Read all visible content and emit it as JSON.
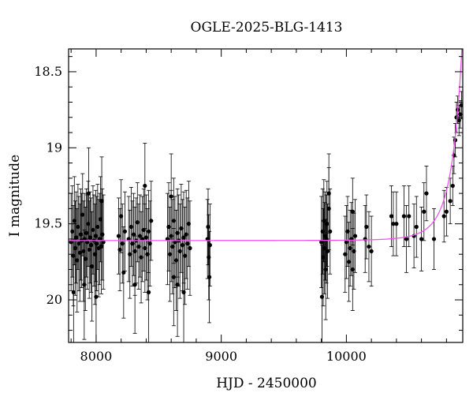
{
  "chart_data": {
    "type": "scatter",
    "title": "OGLE-2025-BLG-1413",
    "xlabel": "HJD - 2450000",
    "ylabel": "I magnitude",
    "xlim": [
      7780,
      10930
    ],
    "ylim": [
      20.28,
      18.35
    ],
    "y_inverted": true,
    "x_ticks": [
      8000,
      9000,
      10000
    ],
    "x_tick_labels": [
      "8000",
      "9000",
      "10000"
    ],
    "y_ticks": [
      18.5,
      19,
      19.5,
      20
    ],
    "y_tick_labels": [
      "18.5",
      "19",
      "19.5",
      "20"
    ],
    "grid": false,
    "legend": "none",
    "colors": {
      "points": "#000000",
      "model": "#ee55ee",
      "axes": "#000000"
    },
    "series": [
      {
        "kind": "points_with_errorbars",
        "points": [
          [
            7800,
            19.62,
            0.32
          ],
          [
            7810,
            19.55,
            0.3
          ],
          [
            7818,
            19.71,
            0.33
          ],
          [
            7826,
            19.48,
            0.29
          ],
          [
            7833,
            19.66,
            0.31
          ],
          [
            7840,
            19.59,
            0.3
          ],
          [
            7848,
            19.74,
            0.34
          ],
          [
            7855,
            19.52,
            0.28
          ],
          [
            7862,
            19.63,
            0.31
          ],
          [
            7870,
            19.69,
            0.32
          ],
          [
            7877,
            19.57,
            0.3
          ],
          [
            7884,
            19.61,
            0.31
          ],
          [
            7892,
            19.44,
            0.27
          ],
          [
            7900,
            19.68,
            0.33
          ],
          [
            7907,
            19.6,
            0.3
          ],
          [
            7914,
            19.73,
            0.34
          ],
          [
            7922,
            19.56,
            0.29
          ],
          [
            7930,
            19.62,
            0.31
          ],
          [
            7937,
            19.5,
            0.28
          ],
          [
            7945,
            19.67,
            0.32
          ],
          [
            7952,
            19.59,
            0.3
          ],
          [
            7960,
            19.64,
            0.31
          ],
          [
            7967,
            19.78,
            0.36
          ],
          [
            7975,
            19.54,
            0.29
          ],
          [
            7982,
            19.61,
            0.3
          ],
          [
            7990,
            19.7,
            0.33
          ],
          [
            7997,
            19.58,
            0.3
          ],
          [
            8005,
            19.63,
            0.31
          ],
          [
            8012,
            19.52,
            0.28
          ],
          [
            8020,
            19.66,
            0.32
          ],
          [
            8027,
            19.6,
            0.3
          ],
          [
            8035,
            19.47,
            0.28
          ],
          [
            8042,
            19.65,
            0.31
          ],
          [
            8050,
            19.57,
            0.3
          ],
          [
            8058,
            19.62,
            0.31
          ],
          [
            7820,
            19.95,
            0.35
          ],
          [
            7905,
            19.9,
            0.36
          ],
          [
            7940,
            19.3,
            0.3
          ],
          [
            8000,
            19.98,
            0.35
          ],
          [
            8045,
            19.35,
            0.29
          ],
          [
            8180,
            19.58,
            0.25
          ],
          [
            8190,
            19.67,
            0.27
          ],
          [
            8200,
            19.45,
            0.24
          ],
          [
            8210,
            19.63,
            0.26
          ],
          [
            8220,
            19.82,
            0.3
          ],
          [
            8230,
            19.55,
            0.26
          ],
          [
            8260,
            19.6,
            0.28
          ],
          [
            8270,
            19.7,
            0.29
          ],
          [
            8280,
            19.52,
            0.26
          ],
          [
            8290,
            19.63,
            0.28
          ],
          [
            8300,
            19.57,
            0.27
          ],
          [
            8310,
            19.68,
            0.29
          ],
          [
            8320,
            19.61,
            0.28
          ],
          [
            8330,
            19.49,
            0.26
          ],
          [
            8340,
            19.65,
            0.28
          ],
          [
            8350,
            19.58,
            0.27
          ],
          [
            8360,
            19.72,
            0.3
          ],
          [
            8370,
            19.6,
            0.28
          ],
          [
            8380,
            19.54,
            0.27
          ],
          [
            8390,
            19.66,
            0.29
          ],
          [
            8400,
            19.59,
            0.28
          ],
          [
            8410,
            19.7,
            0.3
          ],
          [
            8420,
            19.55,
            0.27
          ],
          [
            8430,
            19.63,
            0.28
          ],
          [
            8440,
            19.48,
            0.26
          ],
          [
            8310,
            19.9,
            0.32
          ],
          [
            8390,
            19.25,
            0.28
          ],
          [
            8420,
            19.95,
            0.33
          ],
          [
            8570,
            19.6,
            0.3
          ],
          [
            8580,
            19.52,
            0.29
          ],
          [
            8590,
            19.7,
            0.31
          ],
          [
            8600,
            19.58,
            0.3
          ],
          [
            8610,
            19.65,
            0.31
          ],
          [
            8620,
            19.48,
            0.28
          ],
          [
            8630,
            19.62,
            0.3
          ],
          [
            8640,
            19.74,
            0.33
          ],
          [
            8650,
            19.56,
            0.29
          ],
          [
            8660,
            19.61,
            0.3
          ],
          [
            8670,
            19.68,
            0.31
          ],
          [
            8680,
            19.53,
            0.29
          ],
          [
            8690,
            19.64,
            0.3
          ],
          [
            8700,
            19.59,
            0.3
          ],
          [
            8710,
            19.71,
            0.32
          ],
          [
            8720,
            19.57,
            0.29
          ],
          [
            8730,
            19.63,
            0.3
          ],
          [
            8740,
            19.5,
            0.28
          ],
          [
            8750,
            19.66,
            0.31
          ],
          [
            8600,
            19.32,
            0.28
          ],
          [
            8650,
            19.9,
            0.34
          ],
          [
            8700,
            19.95,
            0.35
          ],
          [
            8620,
            19.85,
            0.32
          ],
          [
            8890,
            19.6,
            0.26
          ],
          [
            8895,
            19.52,
            0.25
          ],
          [
            8900,
            19.72,
            0.28
          ],
          [
            8905,
            19.85,
            0.3
          ],
          [
            8910,
            19.64,
            0.27
          ],
          [
            9800,
            19.62,
            0.3
          ],
          [
            9810,
            19.55,
            0.28
          ],
          [
            9815,
            19.72,
            0.32
          ],
          [
            9820,
            19.48,
            0.27
          ],
          [
            9825,
            19.66,
            0.3
          ],
          [
            9830,
            19.58,
            0.29
          ],
          [
            9835,
            19.8,
            0.33
          ],
          [
            9840,
            19.6,
            0.29
          ],
          [
            9845,
            19.5,
            0.28
          ],
          [
            9850,
            19.68,
            0.31
          ],
          [
            9860,
            19.4,
            0.27
          ],
          [
            9870,
            19.55,
            0.28
          ],
          [
            9805,
            19.98,
            0.34
          ],
          [
            9860,
            19.3,
            0.26
          ],
          [
            9990,
            19.7,
            0.25
          ],
          [
            10000,
            19.62,
            0.24
          ],
          [
            10010,
            19.55,
            0.23
          ],
          [
            10020,
            19.75,
            0.26
          ],
          [
            10030,
            19.66,
            0.25
          ],
          [
            10040,
            19.6,
            0.24
          ],
          [
            10050,
            19.42,
            0.22
          ],
          [
            10060,
            19.68,
            0.25
          ],
          [
            10070,
            19.58,
            0.24
          ],
          [
            10050,
            19.8,
            0.27
          ],
          [
            10150,
            19.6,
            0.22
          ],
          [
            10160,
            19.52,
            0.21
          ],
          [
            10180,
            19.65,
            0.23
          ],
          [
            10200,
            19.68,
            0.23
          ],
          [
            10360,
            19.45,
            0.2
          ],
          [
            10375,
            19.5,
            0.21
          ],
          [
            10400,
            19.5,
            0.21
          ],
          [
            10460,
            19.45,
            0.2
          ],
          [
            10480,
            19.6,
            0.22
          ],
          [
            10500,
            19.45,
            0.2
          ],
          [
            10540,
            19.58,
            0.21
          ],
          [
            10560,
            19.52,
            0.2
          ],
          [
            10600,
            19.6,
            0.21
          ],
          [
            10620,
            19.42,
            0.19
          ],
          [
            10640,
            19.3,
            0.18
          ],
          [
            10700,
            19.6,
            0.2
          ],
          [
            10780,
            19.45,
            0.17
          ],
          [
            10800,
            19.42,
            0.16
          ],
          [
            10830,
            19.35,
            0.15
          ],
          [
            10850,
            19.25,
            0.13
          ],
          [
            10860,
            19.05,
            0.12
          ],
          [
            10870,
            18.95,
            0.11
          ],
          [
            10880,
            18.8,
            0.1
          ],
          [
            10890,
            18.75,
            0.09
          ],
          [
            10900,
            18.82,
            0.1
          ],
          [
            10910,
            18.78,
            0.09
          ],
          [
            10920,
            18.72,
            0.09
          ]
        ]
      },
      {
        "kind": "model_curve",
        "baseline": 19.61,
        "t0": 10975,
        "tE": 180,
        "u0": 0.15
      }
    ]
  }
}
